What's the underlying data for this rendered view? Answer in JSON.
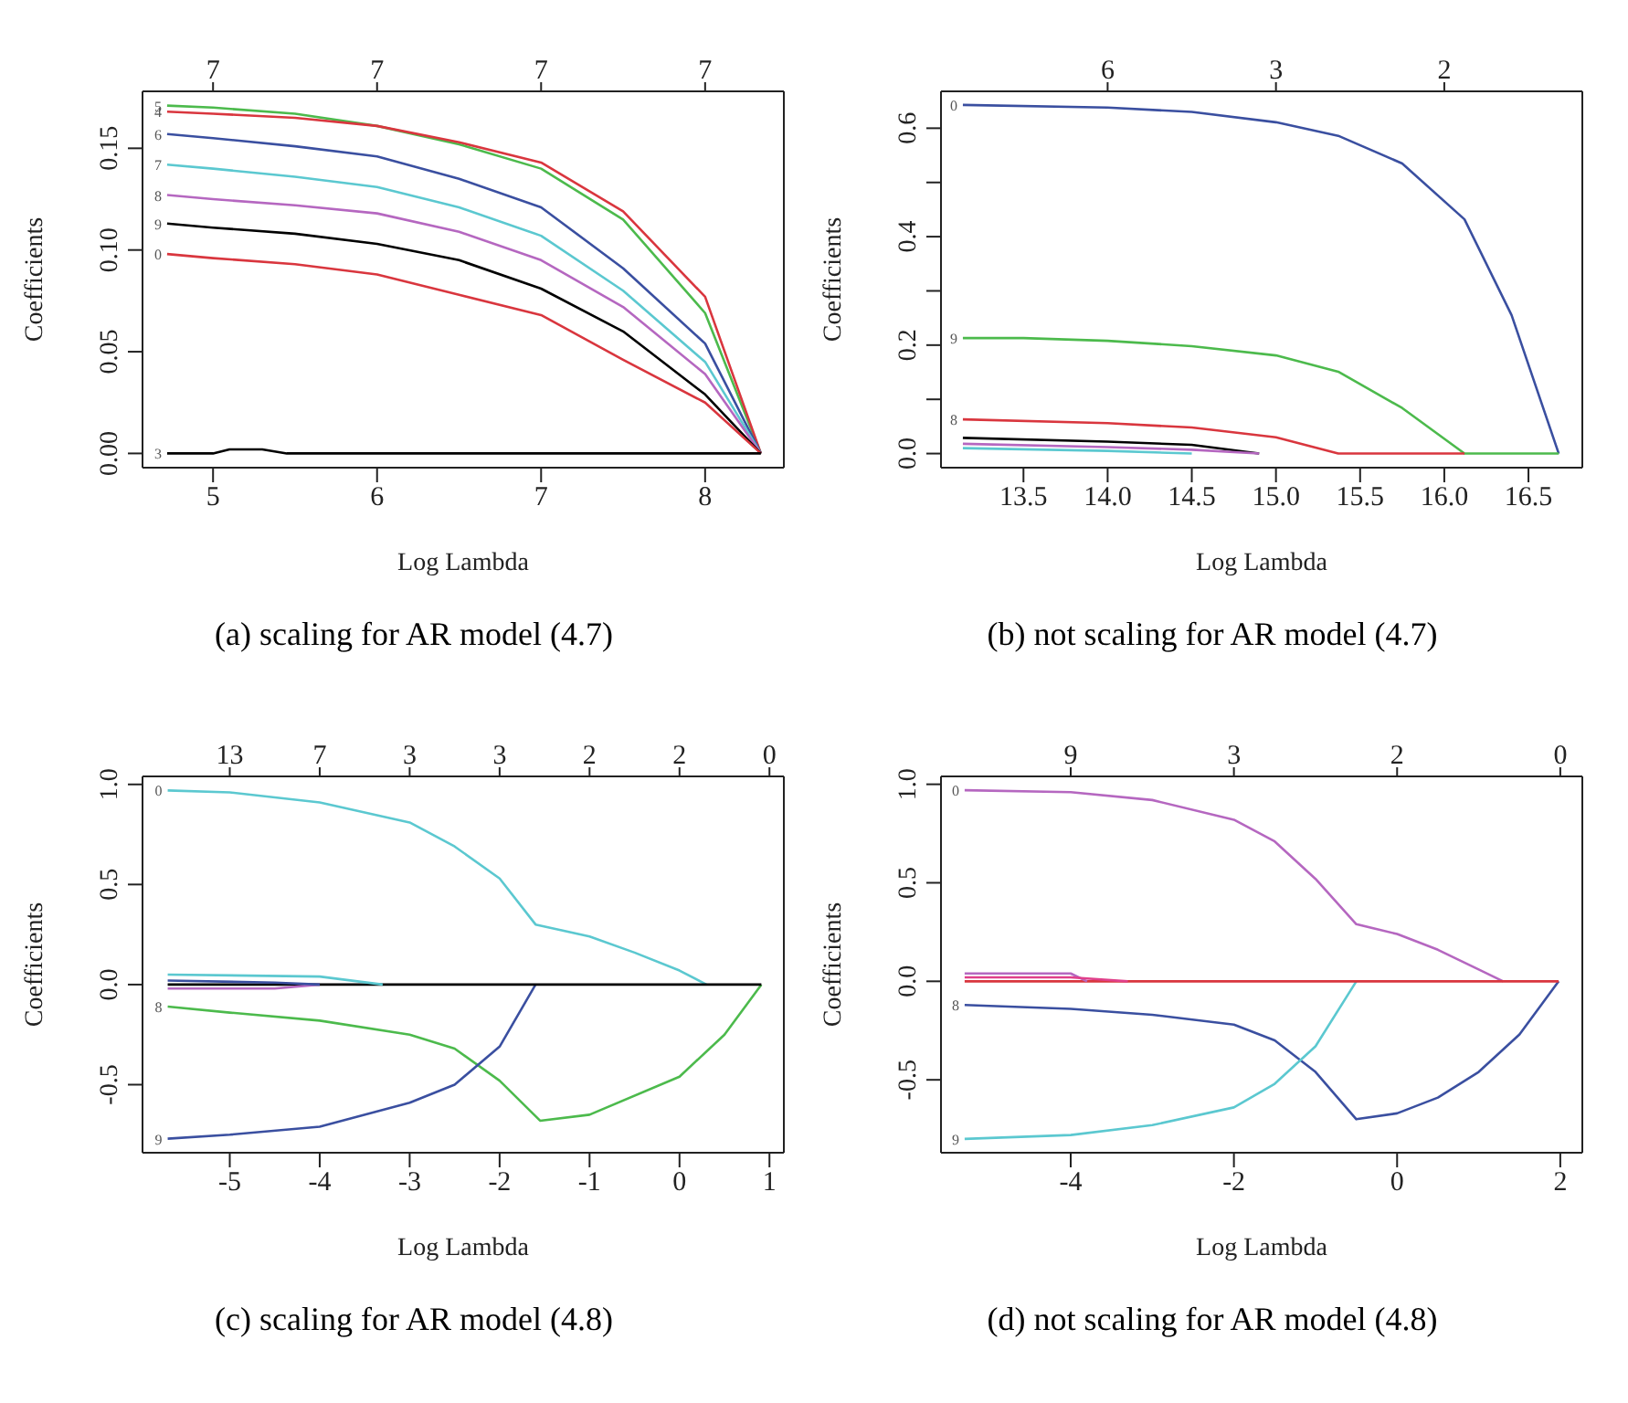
{
  "chart_data": [
    {
      "type": "line",
      "title": "(a) scaling for AR model (4.7)",
      "xlabel": "Log Lambda",
      "ylabel": "Coefficients",
      "xlim": [
        4.57,
        8.48
      ],
      "ylim": [
        -0.007,
        0.178
      ],
      "xticks": [
        5,
        6,
        7,
        8
      ],
      "yticks": [
        {
          "value": 0,
          "label": "0.00"
        },
        0.05,
        {
          "value": 0.1,
          "label": "0.10"
        },
        0.15
      ],
      "annotations": [
        "7",
        "7",
        "7",
        "7"
      ],
      "x": [
        4.72,
        5.0,
        5.5,
        6.0,
        6.5,
        7.0,
        7.5,
        8.0,
        8.34
      ],
      "series": [
        {
          "name": "5",
          "color": "#4cba4c",
          "values": [
            0.171,
            0.17,
            0.167,
            0.161,
            0.152,
            0.14,
            0.115,
            0.069,
            0
          ]
        },
        {
          "name": "4",
          "color": "#d9363e",
          "values": [
            0.168,
            0.167,
            0.165,
            0.161,
            0.153,
            0.143,
            0.119,
            0.077,
            0
          ]
        },
        {
          "name": "6",
          "color": "#3a4fa0",
          "values": [
            0.157,
            0.155,
            0.151,
            0.146,
            0.135,
            0.121,
            0.091,
            0.054,
            0
          ]
        },
        {
          "name": "7",
          "color": "#5bc8d0",
          "values": [
            0.142,
            0.14,
            0.136,
            0.131,
            0.121,
            0.107,
            0.08,
            0.045,
            0
          ]
        },
        {
          "name": "8",
          "color": "#b567c0",
          "values": [
            0.127,
            0.125,
            0.122,
            0.118,
            0.109,
            0.095,
            0.072,
            0.039,
            0
          ]
        },
        {
          "name": "9",
          "color": "#000000",
          "values": [
            0.113,
            0.111,
            0.108,
            0.103,
            0.095,
            0.081,
            0.06,
            0.029,
            0
          ]
        },
        {
          "name": "0",
          "color": "#d9363e",
          "values": [
            0.098,
            0.096,
            0.093,
            0.088,
            0.078,
            0.068,
            0.046,
            0.025,
            0
          ]
        },
        {
          "name": "3",
          "color": "#000000",
          "x": [
            4.72,
            5.0,
            5.1,
            5.3,
            5.45,
            8.34
          ],
          "values": [
            0,
            0,
            0.002,
            0.002,
            0,
            0
          ]
        }
      ]
    },
    {
      "type": "line",
      "title": "(b) not scaling for AR model (4.7)",
      "xlabel": "Log Lambda",
      "ylabel": "Coefficients",
      "xlim": [
        13.01,
        16.82
      ],
      "ylim": [
        -0.026,
        0.668
      ],
      "xticks": [
        13.5,
        {
          "value": 14,
          "label": "14.0"
        },
        14.5,
        {
          "value": 15,
          "label": "15.0"
        },
        15.5,
        {
          "value": 16,
          "label": "16.0"
        },
        16.5
      ],
      "yticks": [
        {
          "value": 0,
          "label": "0.0"
        },
        {
          "value": 0.1,
          "label": null
        },
        0.2,
        {
          "value": 0.3,
          "label": null
        },
        0.4,
        {
          "value": 0.5,
          "label": null
        },
        0.6
      ],
      "annotations": [
        "6",
        "3",
        "2"
      ],
      "series": [
        {
          "name": "0",
          "color": "#3a4fa0",
          "x": [
            13.14,
            14.0,
            14.5,
            15.0,
            15.37,
            15.75,
            16.12,
            16.4,
            16.68
          ],
          "values": [
            0.643,
            0.638,
            0.63,
            0.611,
            0.586,
            0.535,
            0.432,
            0.255,
            0
          ]
        },
        {
          "name": "9",
          "color": "#4cba4c",
          "x": [
            13.14,
            13.5,
            14.0,
            14.5,
            15.0,
            15.37,
            15.75,
            16.12,
            16.68
          ],
          "values": [
            0.213,
            0.213,
            0.208,
            0.198,
            0.181,
            0.151,
            0.084,
            0,
            0
          ]
        },
        {
          "name": "8",
          "color": "#d9363e",
          "x": [
            13.14,
            14.0,
            14.5,
            15.0,
            15.37,
            16.12
          ],
          "values": [
            0.063,
            0.056,
            0.048,
            0.03,
            0,
            0
          ]
        },
        {
          "color": "#000000",
          "x": [
            13.14,
            14.0,
            14.5,
            14.9
          ],
          "values": [
            0.029,
            0.022,
            0.016,
            0
          ]
        },
        {
          "color": "#b567c0",
          "x": [
            13.14,
            14.0,
            14.5,
            14.9
          ],
          "values": [
            0.018,
            0.012,
            0.007,
            0
          ]
        },
        {
          "color": "#5bc8d0",
          "x": [
            13.14,
            14.0,
            14.5
          ],
          "values": [
            0.01,
            0.005,
            0
          ]
        }
      ]
    },
    {
      "type": "line",
      "title": "(c) scaling for AR model (4.8)",
      "xlabel": "Log Lambda",
      "ylabel": "Coefficients",
      "xlim": [
        -5.97,
        1.16
      ],
      "ylim": [
        -0.84,
        1.04
      ],
      "xticks": [
        -5,
        -4,
        -3,
        -2,
        -1,
        0,
        1
      ],
      "yticks": [
        -0.5,
        {
          "value": 0,
          "label": "0.0"
        },
        0.5,
        {
          "value": 1,
          "label": "1.0"
        }
      ],
      "annotations": [
        "13",
        "7",
        "3",
        "3",
        "2",
        "2",
        "0"
      ],
      "series": [
        {
          "name": "0",
          "color": "#5bc8d0",
          "x": [
            -5.69,
            -5,
            -4,
            -3,
            -2.5,
            -2,
            -1.6,
            -1,
            -0.5,
            0,
            0.3
          ],
          "values": [
            0.97,
            0.96,
            0.91,
            0.81,
            0.69,
            0.53,
            0.3,
            0.24,
            0.16,
            0.07,
            0
          ]
        },
        {
          "name": "8",
          "color": "#4cba4c",
          "x": [
            -5.69,
            -5,
            -4,
            -3,
            -2.5,
            -2,
            -1.55,
            -1,
            0,
            0.5,
            0.91
          ],
          "values": [
            -0.11,
            -0.14,
            -0.18,
            -0.25,
            -0.32,
            -0.48,
            -0.68,
            -0.65,
            -0.46,
            -0.25,
            0
          ]
        },
        {
          "name": "9",
          "color": "#3a4fa0",
          "x": [
            -5.69,
            -5,
            -4,
            -3,
            -2.5,
            -2,
            -1.6
          ],
          "values": [
            -0.77,
            -0.75,
            -0.71,
            -0.59,
            -0.5,
            -0.31,
            0
          ]
        },
        {
          "color": "#000000",
          "x": [
            -5.69,
            0.91
          ],
          "values": [
            0,
            0
          ]
        },
        {
          "color": "#5bc8d0",
          "x": [
            -5.69,
            -4,
            -3.3
          ],
          "values": [
            0.05,
            0.04,
            0
          ]
        },
        {
          "color": "#b567c0",
          "x": [
            -5.69,
            -4.5,
            -4
          ],
          "values": [
            -0.02,
            -0.02,
            0
          ]
        },
        {
          "color": "#3a4fa0",
          "x": [
            -5.69,
            -4.5,
            -4
          ],
          "values": [
            0.02,
            0.01,
            0
          ]
        }
      ]
    },
    {
      "type": "line",
      "title": "(d) not scaling for AR model (4.8)",
      "xlabel": "Log Lambda",
      "ylabel": "Coefficients",
      "xlim": [
        -5.59,
        2.27
      ],
      "ylim": [
        -0.87,
        1.04
      ],
      "xticks": [
        -4,
        -2,
        0,
        2
      ],
      "yticks": [
        -0.5,
        {
          "value": 0,
          "label": "0.0"
        },
        0.5,
        {
          "value": 1,
          "label": "1.0"
        }
      ],
      "annotations": [
        "9",
        "3",
        "2",
        "0"
      ],
      "series": [
        {
          "name": "0",
          "color": "#b567c0",
          "x": [
            -5.3,
            -4,
            -3,
            -2,
            -1.5,
            -1,
            -0.5,
            0,
            0.5,
            1,
            1.3
          ],
          "values": [
            0.97,
            0.96,
            0.92,
            0.82,
            0.71,
            0.52,
            0.29,
            0.24,
            0.16,
            0.06,
            0
          ]
        },
        {
          "name": "8",
          "color": "#3a4fa0",
          "x": [
            -5.3,
            -4,
            -3,
            -2,
            -1.5,
            -1,
            -0.5,
            0,
            0.5,
            1,
            1.5,
            1.98
          ],
          "values": [
            -0.12,
            -0.14,
            -0.17,
            -0.22,
            -0.3,
            -0.46,
            -0.7,
            -0.67,
            -0.59,
            -0.46,
            -0.27,
            0
          ]
        },
        {
          "name": "9",
          "color": "#5bc8d0",
          "x": [
            -5.3,
            -4,
            -3,
            -2,
            -1.5,
            -1,
            -0.5
          ],
          "values": [
            -0.8,
            -0.78,
            -0.73,
            -0.64,
            -0.52,
            -0.33,
            0
          ]
        },
        {
          "color": "#d9363e",
          "x": [
            -5.3,
            1.98
          ],
          "values": [
            0,
            0
          ]
        },
        {
          "color": "#b567c0",
          "x": [
            -5.3,
            -4,
            -3.8
          ],
          "values": [
            0.04,
            0.04,
            0
          ]
        },
        {
          "color": "#e0408a",
          "x": [
            -5.3,
            -4,
            -3.3
          ],
          "values": [
            0.02,
            0.02,
            0
          ]
        }
      ]
    }
  ]
}
